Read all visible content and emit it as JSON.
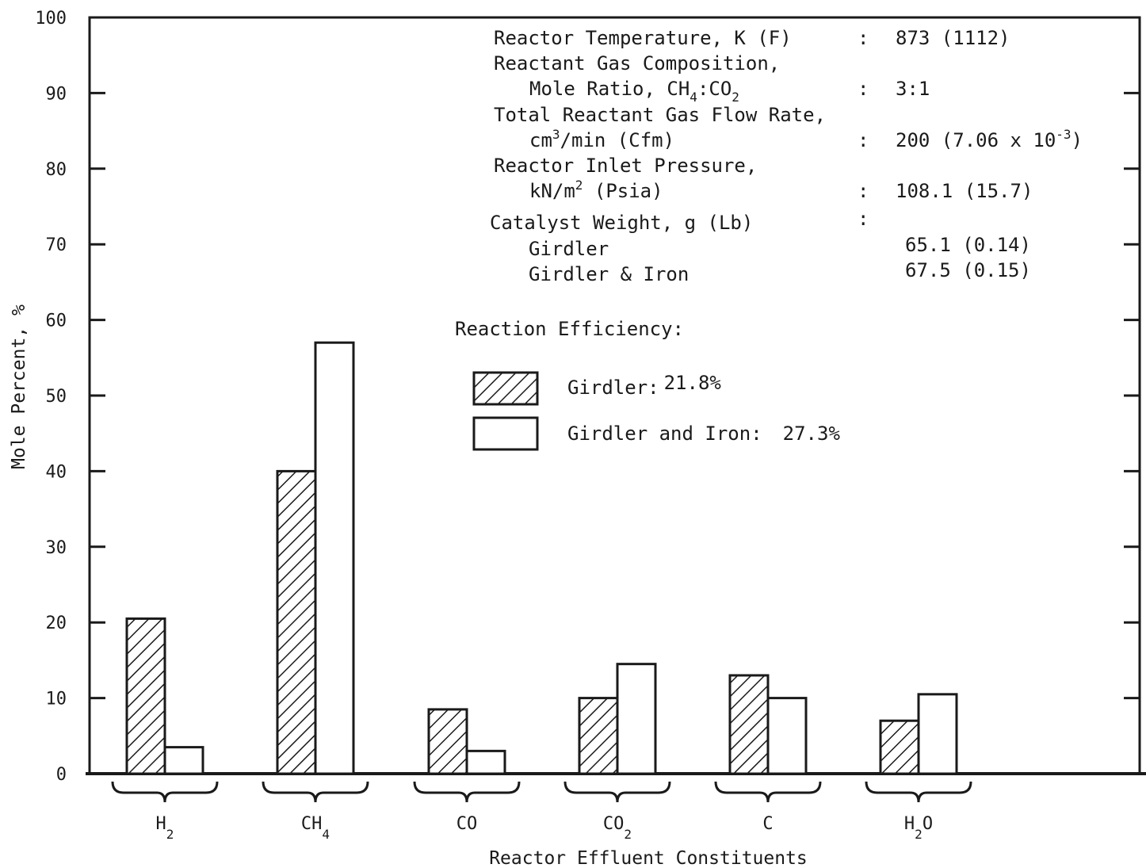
{
  "chart_data": {
    "type": "bar",
    "xlabel": "Reactor Effluent Constituents",
    "ylabel": "Mole Percent, %",
    "ylim": [
      0,
      100
    ],
    "yticks": [
      "0",
      "10",
      "20",
      "30",
      "40",
      "50",
      "60",
      "70",
      "80",
      "90",
      "100"
    ],
    "categories": [
      {
        "base": "H",
        "sub": "2",
        "after": ""
      },
      {
        "base": "CH",
        "sub": "4",
        "after": ""
      },
      {
        "base": "CO",
        "sub": "",
        "after": ""
      },
      {
        "base": "CO",
        "sub": "2",
        "after": ""
      },
      {
        "base": "C",
        "sub": "",
        "after": ""
      },
      {
        "base": "H",
        "sub": "2",
        "after": "O"
      }
    ],
    "series": [
      {
        "name": "Girdler",
        "style": "hatched",
        "values": [
          20.5,
          40.0,
          8.5,
          10.0,
          13.0,
          7.0
        ]
      },
      {
        "name": "Girdler and Iron",
        "style": "open",
        "values": [
          3.5,
          57.0,
          3.0,
          14.5,
          10.0,
          10.5
        ]
      }
    ],
    "legend": {
      "title": "Reaction Efficiency:",
      "placement": "top-center",
      "items": [
        {
          "label": "Girdler:",
          "value": "21.8%"
        },
        {
          "label": "Girdler and Iron:",
          "value": "27.3%"
        }
      ]
    },
    "conditions": {
      "temp_label": "Reactor Temperature, K (F)",
      "temp_value": "873 (1112)",
      "comp_label_1": "Reactant Gas Composition,",
      "comp_label_2a": "Mole Ratio, CH",
      "comp_label_2b": "4",
      "comp_label_2c": ":CO",
      "comp_label_2d": "2",
      "comp_value": "3:1",
      "flow_label_1": "Total Reactant Gas Flow Rate,",
      "flow_label_2a": "cm",
      "flow_label_2b": "3",
      "flow_label_2c": "/min (Cfm)",
      "flow_value_a": "200 (7.06 x 10",
      "flow_value_b": "-3",
      "flow_value_c": ")",
      "press_label_1": "Reactor Inlet Pressure,",
      "press_label_2a": "kN/m",
      "press_label_2b": "2",
      "press_label_2c": "  (Psia)",
      "press_value": "108.1 (15.7)",
      "cat_label": "Catalyst Weight, g (Lb)",
      "cat_girdler_label": "Girdler",
      "cat_girdler_value": "65.1 (0.14)",
      "cat_iron_label": "Girdler & Iron",
      "cat_iron_value": "67.5 (0.15)",
      "colon": ":"
    }
  }
}
